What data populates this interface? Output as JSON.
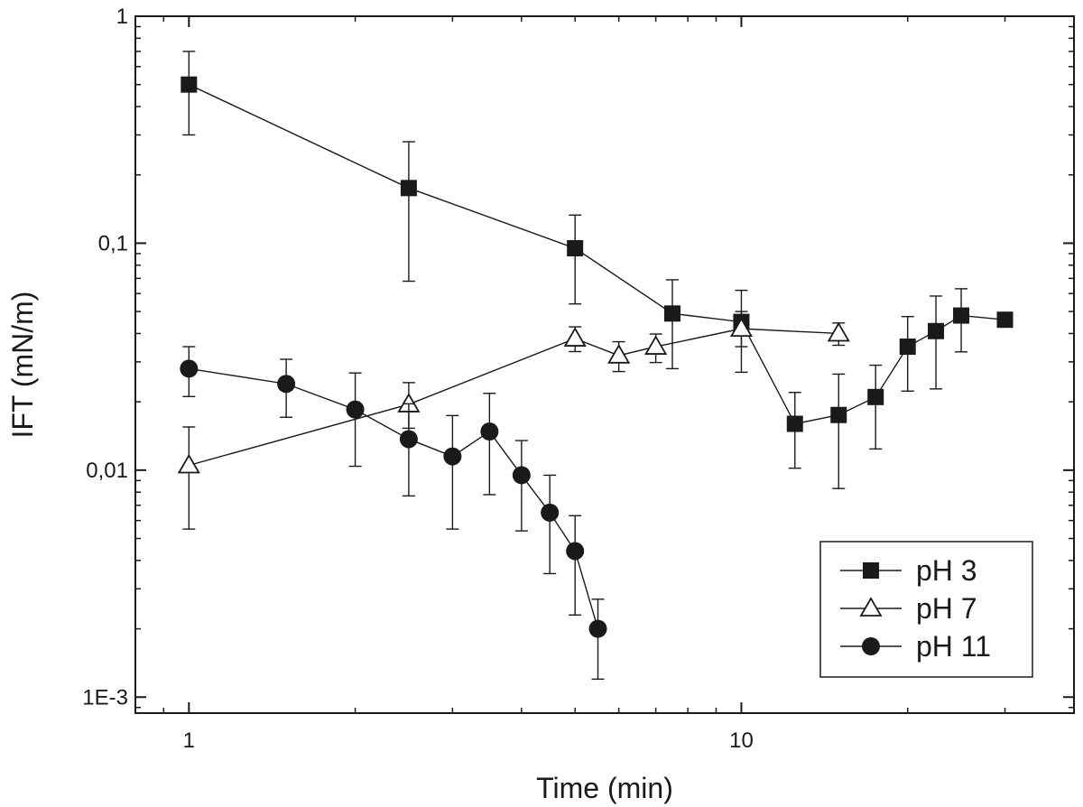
{
  "chart_data": {
    "type": "scatter",
    "xlabel": "Time (min)",
    "ylabel": "IFT (mN/m)",
    "x_scale": "log",
    "y_scale": "log",
    "xlim": [
      0.8,
      40
    ],
    "ylim": [
      0.00085,
      1
    ],
    "x_ticks": [
      {
        "value": 1,
        "label": "1"
      },
      {
        "value": 10,
        "label": "10"
      }
    ],
    "y_ticks": [
      {
        "value": 1,
        "label": "1"
      },
      {
        "value": 0.1,
        "label": "0,1"
      },
      {
        "value": 0.01,
        "label": "0,01"
      },
      {
        "value": 0.001,
        "label": "1E-3"
      }
    ],
    "legend_position": "bottom-right",
    "series": [
      {
        "name": "pH 3",
        "marker": "filled-square",
        "color": "#1a1a1a",
        "points": [
          {
            "x": 1,
            "y": 0.5,
            "err_low": 0.3,
            "err_high": 0.7
          },
          {
            "x": 2.5,
            "y": 0.175,
            "err_low": 0.068,
            "err_high": 0.28
          },
          {
            "x": 5,
            "y": 0.095,
            "err_low": 0.054,
            "err_high": 0.133
          },
          {
            "x": 7.5,
            "y": 0.049,
            "err_low": 0.028,
            "err_high": 0.069
          },
          {
            "x": 10,
            "y": 0.045,
            "err_low": 0.027,
            "err_high": 0.062
          },
          {
            "x": 12.5,
            "y": 0.016,
            "err_low": 0.0102,
            "err_high": 0.022
          },
          {
            "x": 15,
            "y": 0.0175,
            "err_low": 0.0083,
            "err_high": 0.0265
          },
          {
            "x": 17.5,
            "y": 0.021,
            "err_low": 0.0124,
            "err_high": 0.029
          },
          {
            "x": 20,
            "y": 0.035,
            "err_low": 0.0223,
            "err_high": 0.0475
          },
          {
            "x": 22.5,
            "y": 0.041,
            "err_low": 0.0228,
            "err_high": 0.0585
          },
          {
            "x": 25,
            "y": 0.048,
            "err_low": 0.0332,
            "err_high": 0.063
          },
          {
            "x": 30,
            "y": 0.046
          }
        ]
      },
      {
        "name": "pH 7",
        "marker": "open-triangle",
        "color": "#1a1a1a",
        "points": [
          {
            "x": 1,
            "y": 0.0105,
            "err_low": 0.0055,
            "err_high": 0.0155
          },
          {
            "x": 2.5,
            "y": 0.0195,
            "err_low": 0.0153,
            "err_high": 0.0243
          },
          {
            "x": 5,
            "y": 0.038,
            "err_low": 0.0333,
            "err_high": 0.0428
          },
          {
            "x": 6,
            "y": 0.032,
            "err_low": 0.0272,
            "err_high": 0.0368
          },
          {
            "x": 7,
            "y": 0.035,
            "err_low": 0.0298,
            "err_high": 0.0398
          },
          {
            "x": 10,
            "y": 0.042,
            "err_low": 0.035,
            "err_high": 0.05
          },
          {
            "x": 15,
            "y": 0.04,
            "err_low": 0.0355,
            "err_high": 0.0445
          }
        ]
      },
      {
        "name": "pH 11",
        "marker": "filled-circle",
        "color": "#1a1a1a",
        "points": [
          {
            "x": 1,
            "y": 0.028,
            "err_low": 0.0211,
            "err_high": 0.035
          },
          {
            "x": 1.5,
            "y": 0.024,
            "err_low": 0.0171,
            "err_high": 0.0308
          },
          {
            "x": 2,
            "y": 0.0185,
            "err_low": 0.0104,
            "err_high": 0.0268
          },
          {
            "x": 2.5,
            "y": 0.0137,
            "err_low": 0.0077,
            "err_high": 0.0196
          },
          {
            "x": 3,
            "y": 0.0115,
            "err_low": 0.0055,
            "err_high": 0.0174
          },
          {
            "x": 3.5,
            "y": 0.0148,
            "err_low": 0.0078,
            "err_high": 0.0218
          },
          {
            "x": 4,
            "y": 0.0095,
            "err_low": 0.0054,
            "err_high": 0.0135
          },
          {
            "x": 4.5,
            "y": 0.0065,
            "err_low": 0.0035,
            "err_high": 0.0095
          },
          {
            "x": 5,
            "y": 0.0044,
            "err_low": 0.0023,
            "err_high": 0.0063
          },
          {
            "x": 5.5,
            "y": 0.002,
            "err_low": 0.0012,
            "err_high": 0.0027
          }
        ]
      }
    ]
  }
}
